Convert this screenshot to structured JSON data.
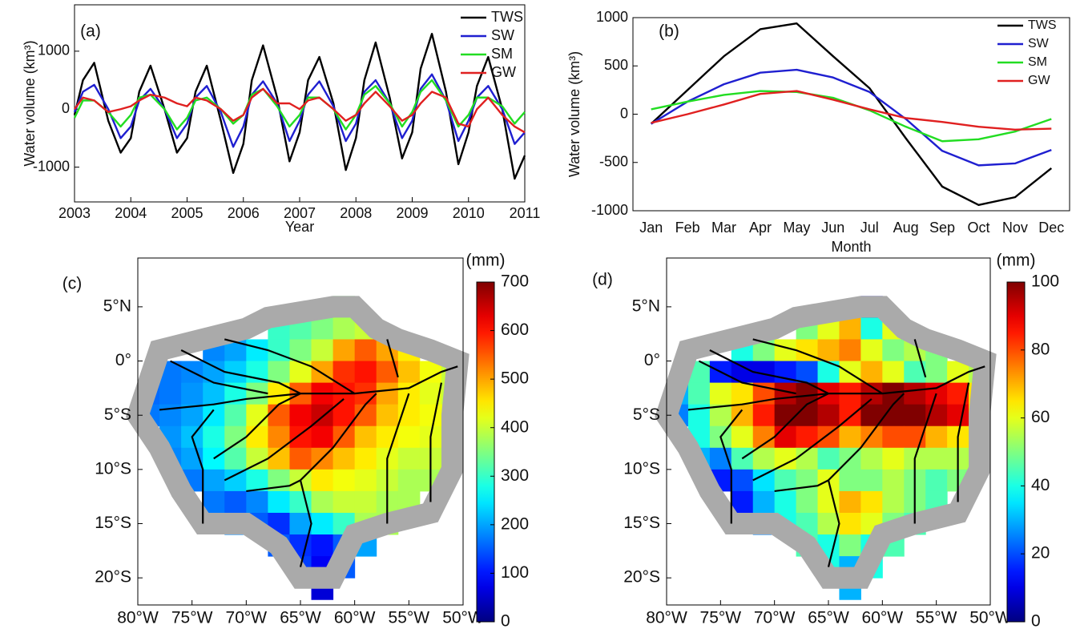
{
  "chart_data": [
    {
      "type": "line",
      "panel_label": "(a)",
      "xlabel": "Year",
      "ylabel": "Water volume (km³)",
      "xlim": [
        2003,
        2011
      ],
      "xticks": [
        2003,
        2004,
        2005,
        2006,
        2007,
        2008,
        2009,
        2010,
        2011
      ],
      "ylim": [
        -1600,
        1800
      ],
      "yticks": [
        -1000,
        0,
        1000
      ],
      "legend": "upper right",
      "x": [
        2003,
        2003.15,
        2003.35,
        2003.6,
        2003.82,
        2004,
        2004.15,
        2004.35,
        2004.6,
        2004.82,
        2005,
        2005.15,
        2005.35,
        2005.6,
        2005.82,
        2006,
        2006.15,
        2006.35,
        2006.6,
        2006.82,
        2007,
        2007.15,
        2007.35,
        2007.6,
        2007.82,
        2008,
        2008.15,
        2008.35,
        2008.6,
        2008.82,
        2009,
        2009.15,
        2009.35,
        2009.6,
        2009.82,
        2010,
        2010.15,
        2010.35,
        2010.6,
        2010.82,
        2011
      ],
      "series": [
        {
          "name": "TWS",
          "color": "#000000",
          "values": [
            -100,
            500,
            800,
            -200,
            -750,
            -500,
            300,
            750,
            0,
            -750,
            -500,
            300,
            750,
            -200,
            -1100,
            -600,
            500,
            1100,
            200,
            -900,
            -400,
            500,
            900,
            100,
            -1050,
            -500,
            500,
            1150,
            200,
            -850,
            -400,
            700,
            1300,
            300,
            -950,
            -400,
            400,
            900,
            0,
            -1200,
            -800
          ]
        },
        {
          "name": "SW",
          "color": "#1f1fd0",
          "values": [
            -50,
            300,
            420,
            0,
            -500,
            -300,
            150,
            350,
            0,
            -500,
            -250,
            200,
            400,
            -50,
            -650,
            -300,
            250,
            480,
            100,
            -550,
            -200,
            250,
            480,
            50,
            -550,
            -250,
            300,
            500,
            100,
            -500,
            -200,
            350,
            600,
            150,
            -550,
            -200,
            200,
            400,
            0,
            -600,
            -400
          ]
        },
        {
          "name": "SM",
          "color": "#22dd22",
          "values": [
            -150,
            150,
            150,
            -50,
            -300,
            -100,
            200,
            250,
            0,
            -350,
            -150,
            150,
            200,
            0,
            -250,
            -100,
            250,
            350,
            50,
            -300,
            -100,
            200,
            200,
            0,
            -350,
            -100,
            250,
            400,
            100,
            -300,
            -50,
            300,
            500,
            150,
            -300,
            -100,
            200,
            200,
            50,
            -250,
            -50
          ]
        },
        {
          "name": "GW",
          "color": "#e02020",
          "values": [
            0,
            200,
            150,
            -50,
            0,
            50,
            150,
            250,
            200,
            100,
            50,
            200,
            150,
            0,
            -200,
            -100,
            200,
            350,
            100,
            100,
            0,
            150,
            200,
            0,
            -200,
            -100,
            100,
            300,
            50,
            -200,
            -100,
            100,
            300,
            200,
            -250,
            -300,
            0,
            200,
            -100,
            -300,
            -400
          ]
        }
      ]
    },
    {
      "type": "line",
      "panel_label": "(b)",
      "xlabel": "Month",
      "ylabel": "Water volume (km³)",
      "categories": [
        "Jan",
        "Feb",
        "Mar",
        "Apr",
        "May",
        "Jun",
        "Jul",
        "Aug",
        "Sep",
        "Oct",
        "Nov",
        "Dec"
      ],
      "ylim": [
        -1000,
        1000
      ],
      "yticks": [
        -1000,
        -500,
        0,
        500,
        1000
      ],
      "legend": "upper right",
      "series": [
        {
          "name": "TWS",
          "color": "#000000",
          "values": [
            -100,
            250,
            600,
            880,
            940,
            600,
            270,
            -250,
            -750,
            -940,
            -860,
            -560
          ]
        },
        {
          "name": "SW",
          "color": "#1f1fd0",
          "values": [
            -100,
            130,
            310,
            430,
            460,
            380,
            230,
            -50,
            -380,
            -530,
            -510,
            -370
          ]
        },
        {
          "name": "SM",
          "color": "#22dd22",
          "values": [
            50,
            130,
            200,
            240,
            230,
            170,
            40,
            -130,
            -280,
            -260,
            -180,
            -50
          ]
        },
        {
          "name": "GW",
          "color": "#e02020",
          "values": [
            -90,
            0,
            100,
            210,
            240,
            150,
            50,
            -40,
            -80,
            -130,
            -160,
            -150
          ]
        }
      ]
    },
    {
      "type": "map",
      "panel_label": "(c)",
      "colorbar_label": "(mm)",
      "colormap": "jet",
      "clim": [
        0,
        700
      ],
      "cticks": [
        0,
        100,
        200,
        300,
        400,
        500,
        600,
        700
      ],
      "xlim": [
        -80,
        -50
      ],
      "ylim": [
        -22.5,
        9.5
      ],
      "xticks": [
        {
          "value": -80,
          "label": "80°W"
        },
        {
          "value": -75,
          "label": "75°W"
        },
        {
          "value": -70,
          "label": "70°W"
        },
        {
          "value": -65,
          "label": "65°W"
        },
        {
          "value": -60,
          "label": "60°W"
        },
        {
          "value": -55,
          "label": "55°W"
        },
        {
          "value": -50,
          "label": "50°W"
        }
      ],
      "yticks": [
        {
          "value": 5,
          "label": "5°N"
        },
        {
          "value": 0,
          "label": "0°"
        },
        {
          "value": -5,
          "label": "5°S"
        },
        {
          "value": -10,
          "label": "10°S"
        },
        {
          "value": -15,
          "label": "15°S"
        },
        {
          "value": -20,
          "label": "20°S"
        }
      ],
      "x": [
        -79,
        -77,
        -75,
        -73,
        -71,
        -69,
        -67,
        -65,
        -63,
        -61,
        -59,
        -57,
        -55,
        -53,
        -51
      ],
      "y": [
        5,
        3,
        1,
        -1,
        -3,
        -5,
        -7,
        -9,
        -11,
        -13,
        -15,
        -17,
        -19,
        -21
      ],
      "values": [
        [
          null,
          null,
          null,
          null,
          null,
          null,
          null,
          null,
          null,
          350,
          null,
          null,
          null,
          null,
          null
        ],
        [
          null,
          null,
          null,
          null,
          null,
          null,
          300,
          320,
          350,
          380,
          400,
          null,
          null,
          null,
          null
        ],
        [
          null,
          null,
          null,
          180,
          200,
          250,
          300,
          350,
          400,
          500,
          550,
          500,
          450,
          null,
          null
        ],
        [
          null,
          170,
          180,
          200,
          230,
          280,
          350,
          420,
          500,
          580,
          600,
          550,
          480,
          430,
          400
        ],
        [
          160,
          170,
          190,
          220,
          280,
          350,
          450,
          550,
          620,
          600,
          580,
          500,
          450,
          420,
          400
        ],
        [
          170,
          180,
          200,
          250,
          320,
          420,
          550,
          620,
          650,
          600,
          550,
          480,
          450,
          430,
          420
        ],
        [
          null,
          190,
          220,
          280,
          350,
          450,
          520,
          600,
          620,
          550,
          480,
          450,
          430,
          420,
          400
        ],
        [
          null,
          180,
          200,
          260,
          320,
          400,
          480,
          550,
          520,
          480,
          450,
          420,
          400,
          400,
          null
        ],
        [
          null,
          null,
          170,
          200,
          230,
          280,
          350,
          400,
          450,
          430,
          420,
          400,
          380,
          380,
          null
        ],
        [
          null,
          null,
          null,
          170,
          150,
          180,
          250,
          300,
          380,
          400,
          400,
          380,
          380,
          null,
          null
        ],
        [
          null,
          null,
          null,
          null,
          180,
          150,
          120,
          200,
          250,
          300,
          380,
          380,
          null,
          null,
          null
        ],
        [
          null,
          null,
          null,
          null,
          null,
          null,
          150,
          120,
          100,
          150,
          200,
          null,
          null,
          null,
          null
        ],
        [
          null,
          null,
          null,
          null,
          null,
          null,
          null,
          130,
          80,
          150,
          null,
          null,
          null,
          null,
          null
        ],
        [
          null,
          null,
          null,
          null,
          null,
          null,
          null,
          null,
          60,
          null,
          null,
          null,
          null,
          null,
          null
        ]
      ]
    },
    {
      "type": "map",
      "panel_label": "(d)",
      "colorbar_label": "(mm)",
      "colormap": "jet",
      "clim": [
        0,
        100
      ],
      "cticks": [
        0,
        20,
        40,
        60,
        80,
        100
      ],
      "xlim": [
        -80,
        -50
      ],
      "ylim": [
        -22.5,
        9.5
      ],
      "xticks": [
        {
          "value": -80,
          "label": "80°W"
        },
        {
          "value": -75,
          "label": "75°W"
        },
        {
          "value": -70,
          "label": "70°W"
        },
        {
          "value": -65,
          "label": "65°W"
        },
        {
          "value": -60,
          "label": "60°W"
        },
        {
          "value": -55,
          "label": "55°W"
        },
        {
          "value": -50,
          "label": "50°W"
        }
      ],
      "yticks": [
        {
          "value": 5,
          "label": "5°N"
        },
        {
          "value": 0,
          "label": "0°"
        },
        {
          "value": -5,
          "label": "5°S"
        },
        {
          "value": -10,
          "label": "10°S"
        },
        {
          "value": -15,
          "label": "15°S"
        },
        {
          "value": -20,
          "label": "20°S"
        }
      ],
      "x": [
        -79,
        -77,
        -75,
        -73,
        -71,
        -69,
        -67,
        -65,
        -63,
        -61,
        -59,
        -57,
        -55,
        -53,
        -51
      ],
      "y": [
        5,
        3,
        1,
        -1,
        -3,
        -5,
        -7,
        -9,
        -11,
        -13,
        -15,
        -17,
        -19,
        -21
      ],
      "values": [
        [
          null,
          null,
          null,
          null,
          null,
          null,
          null,
          null,
          null,
          10,
          null,
          null,
          null,
          null,
          null
        ],
        [
          null,
          null,
          null,
          null,
          null,
          null,
          50,
          60,
          70,
          40,
          60,
          null,
          null,
          null,
          null
        ],
        [
          null,
          null,
          null,
          40,
          50,
          60,
          65,
          70,
          75,
          60,
          50,
          55,
          50,
          null,
          null
        ],
        [
          null,
          45,
          15,
          10,
          10,
          15,
          20,
          40,
          60,
          70,
          60,
          45,
          50,
          60,
          55
        ],
        [
          30,
          45,
          60,
          65,
          80,
          95,
          100,
          90,
          85,
          95,
          100,
          95,
          90,
          85,
          65
        ],
        [
          25,
          40,
          55,
          70,
          85,
          100,
          100,
          95,
          85,
          100,
          100,
          100,
          95,
          90,
          65
        ],
        [
          null,
          40,
          50,
          60,
          75,
          90,
          85,
          80,
          70,
          75,
          80,
          80,
          70,
          65,
          60
        ],
        [
          null,
          30,
          25,
          45,
          55,
          60,
          55,
          45,
          50,
          55,
          60,
          55,
          55,
          55,
          null
        ],
        [
          null,
          null,
          15,
          20,
          35,
          45,
          50,
          60,
          50,
          50,
          55,
          50,
          45,
          50,
          null
        ],
        [
          null,
          null,
          null,
          15,
          30,
          40,
          50,
          60,
          70,
          65,
          55,
          50,
          45,
          null,
          null
        ],
        [
          null,
          null,
          null,
          null,
          25,
          40,
          45,
          55,
          65,
          60,
          50,
          45,
          null,
          null,
          null
        ],
        [
          null,
          null,
          null,
          null,
          null,
          null,
          45,
          40,
          50,
          40,
          45,
          null,
          null,
          null,
          null
        ],
        [
          null,
          null,
          null,
          null,
          null,
          null,
          null,
          40,
          30,
          40,
          null,
          null,
          null,
          null,
          null
        ],
        [
          null,
          null,
          null,
          null,
          null,
          null,
          null,
          null,
          30,
          null,
          null,
          null,
          null,
          null,
          null
        ]
      ]
    }
  ]
}
